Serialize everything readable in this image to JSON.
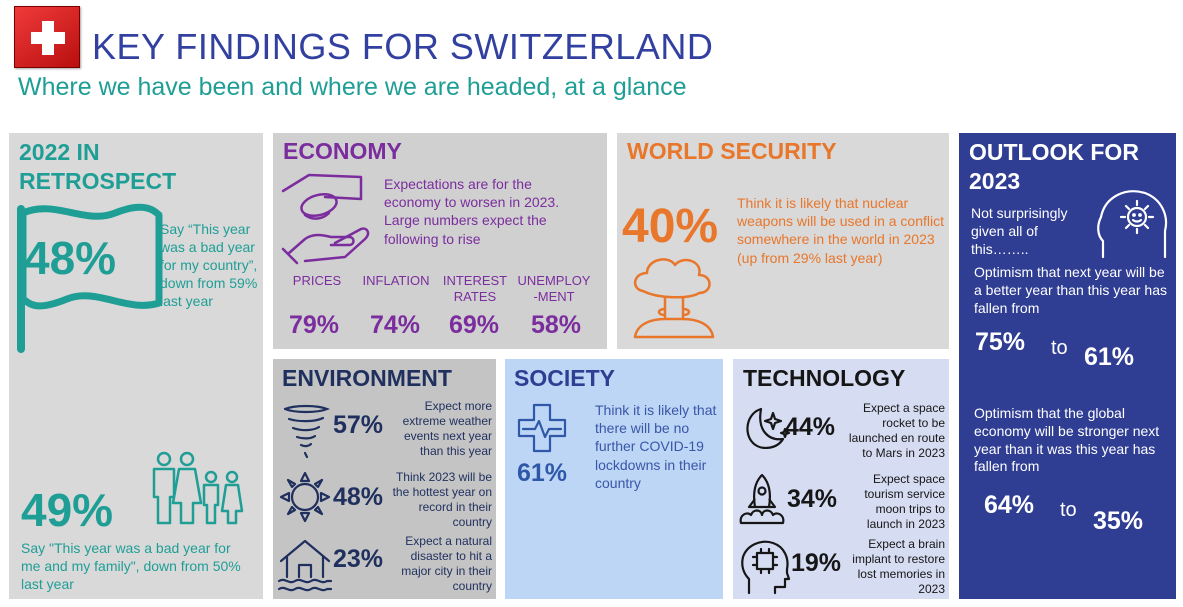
{
  "header": {
    "title": "KEY FINDINGS FOR SWITZERLAND",
    "subtitle": "Where we have been and where we are headed, at a glance"
  },
  "colors": {
    "teal": "#1f9e96",
    "purple": "#7b2d9e",
    "orange": "#e8762b",
    "navy": "#2f3d93",
    "dark": "#1f2f5e",
    "flag_red": "#d81e1e"
  },
  "icons": [
    "swiss-flag-icon",
    "waving-flag-icon",
    "family-icon",
    "hand-money-icon",
    "mushroom-cloud-icon",
    "sun-head-icon",
    "tornado-icon",
    "sun-icon",
    "flooded-house-icon",
    "medical-cross-icon",
    "moon-stars-icon",
    "rocket-icon",
    "brain-chip-head-icon"
  ],
  "retrospect": {
    "title_line1": "2022 IN",
    "title_line2": "RETROSPECT",
    "stat1_value": "48%",
    "stat1_text": "Say “This year was a bad year for my country”, down from 59% last year",
    "stat2_value": "49%",
    "stat2_text": "Say \"This year was a bad year for me and my family\", down from 50% last year"
  },
  "economy": {
    "title": "ECONOMY",
    "text": "Expectations are for the economy to worsen in 2023. Large numbers expect the following to rise",
    "items": [
      {
        "label": "PRICES",
        "value": "79%"
      },
      {
        "label": "INFLATION",
        "value": "74%"
      },
      {
        "label": "INTEREST RATES",
        "value": "69%"
      },
      {
        "label": "UNEMPLOY -MENT",
        "value": "58%"
      }
    ]
  },
  "world_security": {
    "title": "WORLD SECURITY",
    "value": "40%",
    "text": "Think it is likely that nuclear weapons will be used in a conflict somewhere in the world in 2023 (up from 29% last year)"
  },
  "outlook": {
    "title_line1": "OUTLOOK FOR",
    "title_line2": "2023",
    "intro": "Not surprisingly given all of this……..",
    "optimism1_text": "Optimism that next year will be a better year than this year has fallen from",
    "optimism1_from": "75%",
    "optimism1_to": "61%",
    "optimism2_text": "Optimism that the global economy will be stronger next year than it was this year has fallen from",
    "optimism2_from": "64%",
    "optimism2_to": "35%",
    "to_word": "to"
  },
  "environment": {
    "title": "ENVIRONMENT",
    "items": [
      {
        "value": "57%",
        "text": "Expect more extreme weather events next year than this year"
      },
      {
        "value": "48%",
        "text": "Think 2023 will be the hottest year on record in their country"
      },
      {
        "value": "23%",
        "text": "Expect a natural disaster to hit a major city in their country"
      }
    ]
  },
  "society": {
    "title": "SOCIETY",
    "value": "61%",
    "text": "Think it is likely that there will be no further COVID-19 lockdowns in their country"
  },
  "technology": {
    "title": "TECHNOLOGY",
    "items": [
      {
        "value": "44%",
        "text": "Expect a space rocket to be launched en route to Mars in 2023"
      },
      {
        "value": "34%",
        "text": "Expect space tourism service moon trips to launch in 2023"
      },
      {
        "value": "19%",
        "text": "Expect a brain implant to restore lost memories in 2023"
      }
    ]
  }
}
